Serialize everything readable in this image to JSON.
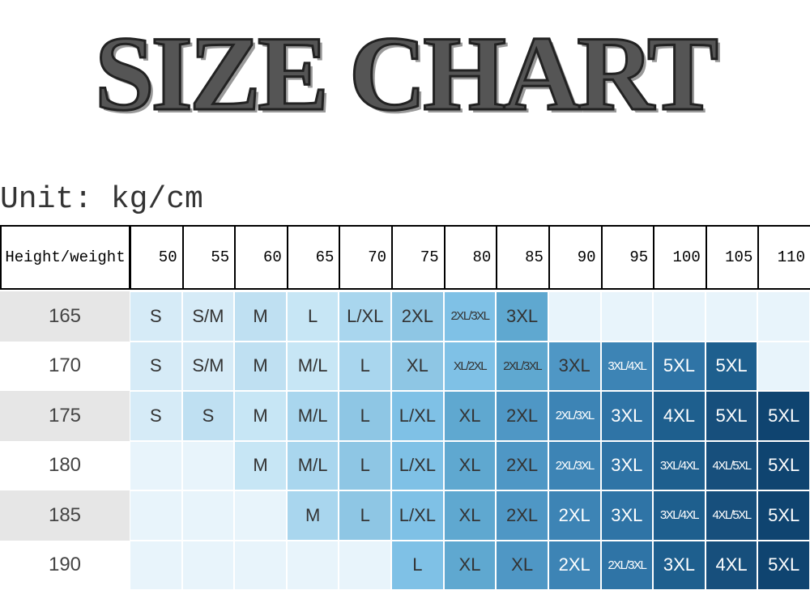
{
  "title": "SIZE CHART",
  "unit": "Unit: kg/cm",
  "table": {
    "corner": "Height/weight",
    "columns": [
      "50",
      "55",
      "60",
      "65",
      "70",
      "75",
      "80",
      "85",
      "90",
      "95",
      "100",
      "105",
      "110"
    ],
    "rows": [
      {
        "height": "165",
        "cells": [
          "S",
          "S/M",
          "M",
          "L",
          "L/XL",
          "2XL",
          "2XL/3XL",
          "3XL",
          null,
          null,
          null,
          null,
          null
        ]
      },
      {
        "height": "170",
        "cells": [
          "S",
          "S/M",
          "M",
          "M/L",
          "L",
          "XL",
          "XL/2XL",
          "2XL/3XL",
          "3XL",
          "3XL/4XL",
          "5XL",
          "5XL",
          null
        ]
      },
      {
        "height": "175",
        "cells": [
          "S",
          "S",
          "M",
          "M/L",
          "L",
          "L/XL",
          "XL",
          "2XL",
          "2XL/3XL",
          "3XL",
          "4XL",
          "5XL",
          "5XL"
        ]
      },
      {
        "height": "180",
        "cells": [
          null,
          null,
          "M",
          "M/L",
          "L",
          "L/XL",
          "XL",
          "2XL",
          "2XL/3XL",
          "3XL",
          "3XL/4XL",
          "4XL/5XL",
          "5XL"
        ]
      },
      {
        "height": "185",
        "cells": [
          null,
          null,
          null,
          "M",
          "L",
          "L/XL",
          "XL",
          "2XL",
          "2XL",
          "3XL",
          "3XL/4XL",
          "4XL/5XL",
          "5XL"
        ]
      },
      {
        "height": "190",
        "cells": [
          null,
          null,
          null,
          null,
          null,
          "L",
          "XL",
          "XL",
          "2XL",
          "2XL/3XL",
          "3XL",
          "4XL",
          "5XL"
        ]
      }
    ]
  }
}
